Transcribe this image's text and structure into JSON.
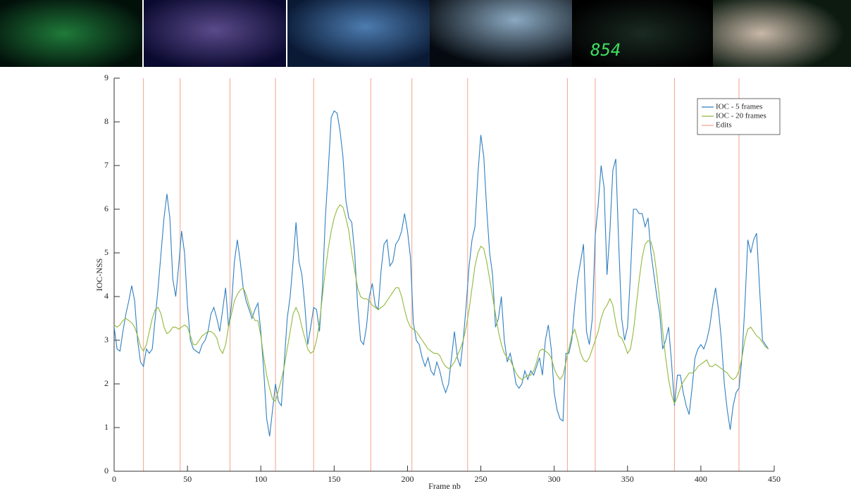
{
  "thumbnails": {
    "clock_text": "854"
  },
  "chart_data": {
    "type": "line",
    "xlabel": "Frame nb",
    "ylabel": "IOC-NSS",
    "xlim": [
      0,
      450
    ],
    "xticks": [
      0,
      50,
      100,
      150,
      200,
      250,
      300,
      350,
      400,
      450
    ],
    "ylim": [
      0,
      9
    ],
    "yticks": [
      0,
      1,
      2,
      3,
      4,
      5,
      6,
      7,
      8,
      9
    ],
    "legend": "top-right",
    "x": [
      0,
      2,
      4,
      6,
      8,
      10,
      12,
      14,
      16,
      18,
      20,
      22,
      24,
      26,
      28,
      30,
      32,
      34,
      36,
      38,
      40,
      42,
      44,
      46,
      48,
      50,
      52,
      54,
      56,
      58,
      60,
      62,
      64,
      66,
      68,
      70,
      72,
      74,
      76,
      78,
      80,
      82,
      84,
      86,
      88,
      90,
      92,
      94,
      96,
      98,
      100,
      102,
      104,
      106,
      108,
      110,
      112,
      114,
      116,
      118,
      120,
      122,
      124,
      126,
      128,
      130,
      132,
      134,
      136,
      138,
      140,
      142,
      144,
      146,
      148,
      150,
      152,
      154,
      156,
      158,
      160,
      162,
      164,
      166,
      168,
      170,
      172,
      174,
      176,
      178,
      180,
      182,
      184,
      186,
      188,
      190,
      192,
      194,
      196,
      198,
      200,
      202,
      204,
      206,
      208,
      210,
      212,
      214,
      216,
      218,
      220,
      222,
      224,
      226,
      228,
      230,
      232,
      234,
      236,
      238,
      240,
      242,
      244,
      246,
      248,
      250,
      252,
      254,
      256,
      258,
      260,
      262,
      264,
      266,
      268,
      270,
      272,
      274,
      276,
      278,
      280,
      282,
      284,
      286,
      288,
      290,
      292,
      294,
      296,
      298,
      300,
      302,
      304,
      306,
      308,
      310,
      312,
      314,
      316,
      318,
      320,
      322,
      324,
      326,
      328,
      330,
      332,
      334,
      336,
      338,
      340,
      342,
      344,
      346,
      348,
      350,
      352,
      354,
      356,
      358,
      360,
      362,
      364,
      366,
      368,
      370,
      372,
      374,
      376,
      378,
      380,
      382,
      384,
      386,
      388,
      390,
      392,
      394,
      396,
      398,
      400,
      402,
      404,
      406,
      408,
      410,
      412,
      414,
      416,
      418,
      420,
      422,
      424,
      426,
      428,
      430,
      432,
      434,
      436,
      438,
      440,
      442,
      444,
      446
    ],
    "series": [
      {
        "name": "IOC - 5 frames",
        "color": "#2f7fc1",
        "values": [
          3.3,
          2.8,
          2.75,
          3.2,
          3.6,
          3.9,
          4.25,
          3.9,
          3.0,
          2.5,
          2.4,
          2.8,
          2.7,
          2.8,
          3.5,
          4.2,
          5.0,
          5.8,
          6.35,
          5.8,
          4.4,
          4.0,
          4.7,
          5.5,
          5.0,
          3.8,
          3.0,
          2.8,
          2.75,
          2.7,
          2.9,
          3.0,
          3.2,
          3.6,
          3.75,
          3.5,
          3.2,
          3.7,
          4.2,
          3.3,
          3.8,
          4.8,
          5.3,
          4.8,
          4.2,
          3.9,
          3.7,
          3.5,
          3.7,
          3.85,
          3.2,
          2.3,
          1.2,
          0.8,
          1.4,
          2.0,
          1.6,
          1.5,
          2.5,
          3.5,
          4.0,
          4.8,
          5.7,
          4.8,
          4.5,
          3.8,
          2.9,
          3.3,
          3.75,
          3.7,
          3.2,
          4.2,
          5.8,
          6.9,
          8.1,
          8.25,
          8.2,
          7.8,
          7.2,
          6.2,
          5.8,
          5.7,
          5.0,
          3.8,
          3.0,
          2.9,
          3.3,
          4.0,
          4.3,
          3.8,
          3.7,
          4.6,
          5.2,
          5.3,
          4.7,
          4.8,
          5.2,
          5.3,
          5.5,
          5.9,
          5.5,
          4.9,
          3.4,
          3.0,
          2.9,
          2.6,
          2.4,
          2.6,
          2.3,
          2.2,
          2.5,
          2.3,
          2.0,
          1.8,
          2.0,
          2.6,
          3.2,
          2.6,
          2.4,
          3.0,
          3.8,
          4.7,
          5.3,
          5.6,
          6.8,
          7.7,
          7.2,
          6.0,
          5.0,
          4.5,
          3.3,
          3.5,
          4.0,
          3.0,
          2.5,
          2.7,
          2.4,
          2.0,
          1.9,
          2.0,
          2.3,
          2.1,
          2.3,
          2.2,
          2.4,
          2.6,
          2.2,
          3.0,
          3.35,
          2.8,
          1.8,
          1.4,
          1.2,
          1.15,
          2.7,
          2.7,
          3.0,
          3.8,
          4.4,
          4.8,
          5.2,
          3.2,
          2.9,
          3.5,
          5.4,
          6.1,
          7.0,
          6.5,
          4.5,
          5.5,
          6.9,
          7.15,
          5.2,
          3.5,
          3.0,
          3.3,
          4.5,
          6.0,
          6.0,
          5.9,
          5.9,
          5.6,
          5.8,
          5.0,
          4.5,
          4.0,
          3.6,
          2.8,
          3.0,
          3.3,
          2.5,
          1.5,
          2.2,
          2.2,
          1.8,
          1.5,
          1.3,
          1.9,
          2.6,
          2.8,
          2.9,
          2.8,
          3.0,
          3.3,
          3.8,
          4.2,
          3.7,
          3.0,
          2.0,
          1.4,
          0.95,
          1.5,
          1.8,
          1.9,
          2.6,
          3.8,
          5.3,
          5.0,
          5.3,
          5.45,
          4.2,
          3.0,
          2.9,
          2.8
        ]
      },
      {
        "name": "IOC - 20 frames",
        "color": "#93b83c",
        "values": [
          3.35,
          3.3,
          3.35,
          3.45,
          3.5,
          3.45,
          3.4,
          3.3,
          3.1,
          2.85,
          2.75,
          2.9,
          3.2,
          3.5,
          3.7,
          3.75,
          3.6,
          3.3,
          3.15,
          3.2,
          3.3,
          3.3,
          3.25,
          3.3,
          3.35,
          3.3,
          3.1,
          2.9,
          2.9,
          3.0,
          3.1,
          3.15,
          3.2,
          3.2,
          3.15,
          3.05,
          2.8,
          2.7,
          2.9,
          3.3,
          3.6,
          3.9,
          4.05,
          4.15,
          4.2,
          4.05,
          3.8,
          3.6,
          3.45,
          3.45,
          3.1,
          2.6,
          2.2,
          1.9,
          1.65,
          1.6,
          1.85,
          2.1,
          2.4,
          2.8,
          3.2,
          3.6,
          3.75,
          3.6,
          3.3,
          3.05,
          2.8,
          2.7,
          2.75,
          3.0,
          3.4,
          4.0,
          4.6,
          5.1,
          5.5,
          5.8,
          6.0,
          6.1,
          6.05,
          5.8,
          5.5,
          5.0,
          4.6,
          4.2,
          4.0,
          3.95,
          3.95,
          3.9,
          3.8,
          3.75,
          3.7,
          3.75,
          3.8,
          3.9,
          4.0,
          4.1,
          4.2,
          4.2,
          4.0,
          3.7,
          3.45,
          3.3,
          3.25,
          3.2,
          3.1,
          3.0,
          2.9,
          2.8,
          2.75,
          2.7,
          2.7,
          2.65,
          2.5,
          2.4,
          2.35,
          2.4,
          2.5,
          2.65,
          2.8,
          3.0,
          3.3,
          3.7,
          4.2,
          4.7,
          5.0,
          5.15,
          5.1,
          4.8,
          4.4,
          4.0,
          3.6,
          3.2,
          2.9,
          2.7,
          2.6,
          2.55,
          2.4,
          2.25,
          2.15,
          2.1,
          2.15,
          2.2,
          2.2,
          2.3,
          2.5,
          2.75,
          2.8,
          2.75,
          2.7,
          2.6,
          2.35,
          2.2,
          2.1,
          2.2,
          2.5,
          2.8,
          3.1,
          3.25,
          3.0,
          2.7,
          2.55,
          2.5,
          2.6,
          2.8,
          3.0,
          3.2,
          3.5,
          3.7,
          3.8,
          3.95,
          3.8,
          3.4,
          3.1,
          3.05,
          2.9,
          2.7,
          2.8,
          3.2,
          3.8,
          4.4,
          4.9,
          5.2,
          5.28,
          5.25,
          5.0,
          4.5,
          3.9,
          3.2,
          2.6,
          2.1,
          1.75,
          1.55,
          1.7,
          1.9,
          2.05,
          2.15,
          2.25,
          2.25,
          2.3,
          2.4,
          2.45,
          2.5,
          2.55,
          2.4,
          2.4,
          2.45,
          2.4,
          2.35,
          2.3,
          2.25,
          2.15,
          2.1,
          2.15,
          2.3,
          2.6,
          3.0,
          3.25,
          3.3,
          3.2,
          3.1,
          3.05,
          2.95,
          2.85,
          2.8
        ]
      }
    ],
    "edits": {
      "name": "Edits",
      "color": "#f2a38c",
      "x": [
        20,
        45,
        79,
        110,
        136,
        175,
        203,
        241,
        309,
        328,
        382,
        426
      ]
    }
  }
}
